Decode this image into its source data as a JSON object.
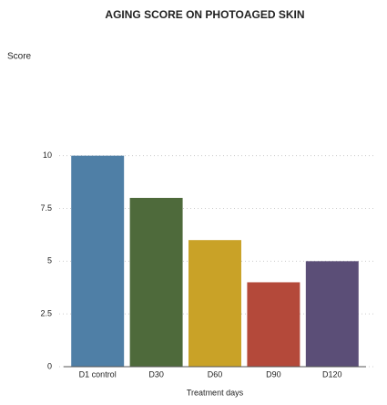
{
  "chart_data": {
    "type": "bar",
    "title": "AGING SCORE ON PHOTOAGED SKIN",
    "y_label": "Score",
    "x_label": "Treatment days",
    "categories": [
      "D1 control",
      "D30",
      "D60",
      "D90",
      "D120"
    ],
    "values": [
      10,
      8,
      6,
      4,
      5
    ],
    "colors": [
      "#4f7fa6",
      "#4e6a3b",
      "#c9a227",
      "#b4493a",
      "#5b4e77"
    ],
    "ylim": [
      0,
      15
    ],
    "yticks": [
      0,
      2.5,
      5,
      7.5,
      10
    ],
    "grid": true
  }
}
